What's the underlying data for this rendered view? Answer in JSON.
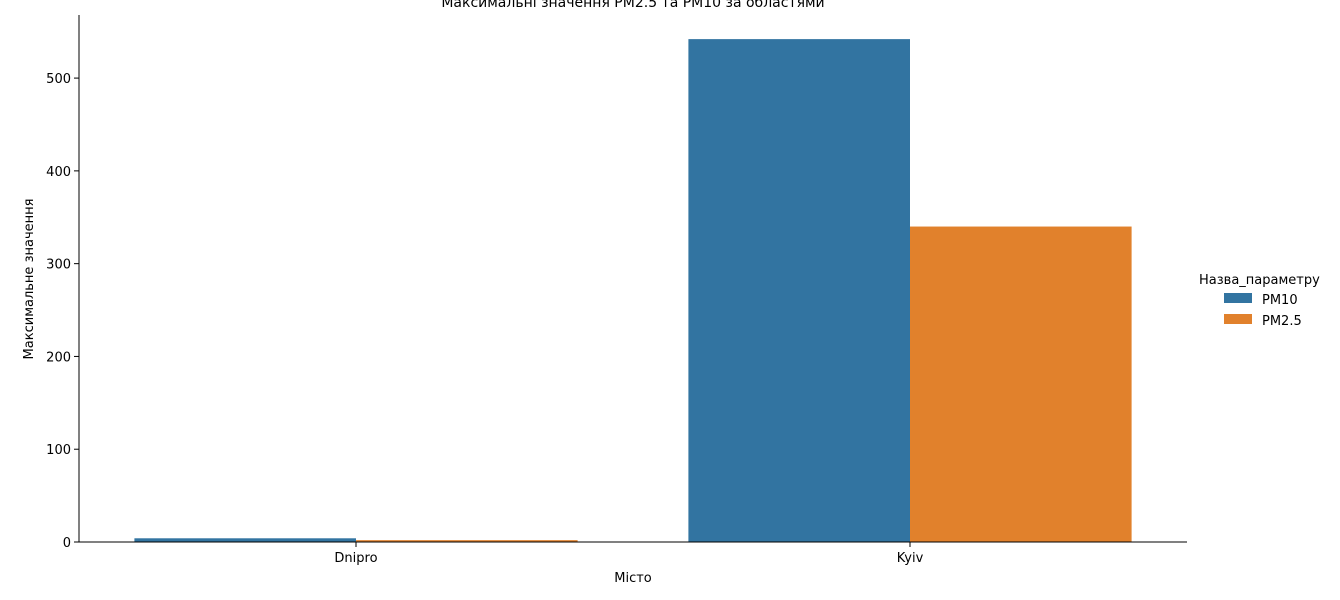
{
  "chart_data": {
    "type": "bar",
    "title": "Максимальні значення PM2.5 та PM10 за областями",
    "xlabel": "Місто",
    "ylabel": "Максимальне значення",
    "categories": [
      "Dnipro",
      "Kyiv"
    ],
    "series": [
      {
        "name": "PM10",
        "values": [
          4,
          542
        ],
        "color": "#3274a1"
      },
      {
        "name": "PM2.5",
        "values": [
          2,
          340
        ],
        "color": "#e1812c"
      }
    ],
    "ylim": [
      0,
      568
    ],
    "yticks": [
      0,
      100,
      200,
      300,
      400,
      500
    ],
    "grid": false,
    "legend": {
      "title": "Назва_параметру",
      "placement": "right"
    }
  }
}
